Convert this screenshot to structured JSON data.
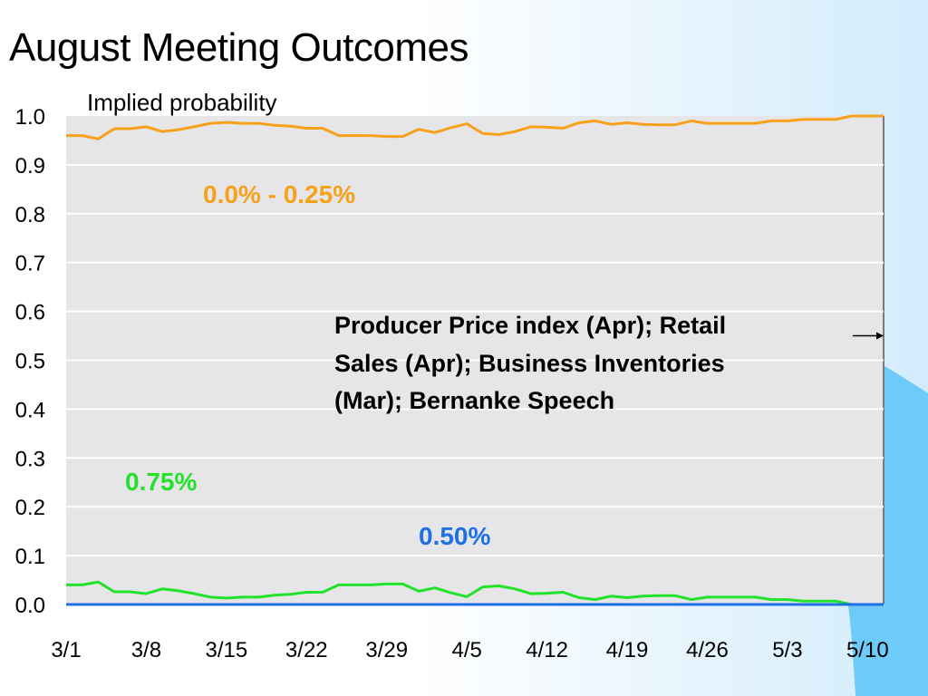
{
  "title": "August Meeting Outcomes",
  "chart_data": {
    "type": "line",
    "title": "August Meeting Outcomes",
    "subtitle": "Implied probability",
    "xlabel": "",
    "ylabel": "",
    "ylim": [
      0,
      1
    ],
    "grid": true,
    "yticks": [
      "0.0",
      "0.1",
      "0.2",
      "0.3",
      "0.4",
      "0.5",
      "0.6",
      "0.7",
      "0.8",
      "0.9",
      "1.0"
    ],
    "xticks": [
      "3/1",
      "3/8",
      "3/15",
      "3/22",
      "3/29",
      "4/5",
      "4/12",
      "4/19",
      "4/26",
      "5/3",
      "5/10"
    ],
    "x": [
      "3/1",
      "3/2",
      "3/3",
      "3/4",
      "3/7",
      "3/8",
      "3/9",
      "3/10",
      "3/11",
      "3/14",
      "3/15",
      "3/16",
      "3/17",
      "3/18",
      "3/21",
      "3/22",
      "3/23",
      "3/24",
      "3/25",
      "3/28",
      "3/29",
      "3/30",
      "3/31",
      "4/1",
      "4/4",
      "4/5",
      "4/6",
      "4/7",
      "4/8",
      "4/11",
      "4/12",
      "4/13",
      "4/14",
      "4/15",
      "4/18",
      "4/19",
      "4/20",
      "4/21",
      "4/22",
      "4/25",
      "4/26",
      "4/27",
      "4/28",
      "4/29",
      "5/2",
      "5/3",
      "5/4",
      "5/5",
      "5/6",
      "5/9",
      "5/10",
      "5/11"
    ],
    "series": [
      {
        "name": "0.0% - 0.25%",
        "color": "#f7a11a",
        "values": [
          0.96,
          0.96,
          0.953,
          0.974,
          0.974,
          0.978,
          0.968,
          0.972,
          0.978,
          0.985,
          0.987,
          0.985,
          0.985,
          0.981,
          0.979,
          0.975,
          0.975,
          0.96,
          0.96,
          0.96,
          0.958,
          0.958,
          0.973,
          0.966,
          0.976,
          0.984,
          0.964,
          0.962,
          0.968,
          0.978,
          0.977,
          0.975,
          0.986,
          0.99,
          0.983,
          0.986,
          0.983,
          0.982,
          0.982,
          0.99,
          0.985,
          0.985,
          0.985,
          0.985,
          0.99,
          0.99,
          0.993,
          0.993,
          0.993,
          1.0,
          1.0,
          1.0
        ]
      },
      {
        "name": "0.75%",
        "color": "#22e22a",
        "values": [
          0.04,
          0.04,
          0.046,
          0.026,
          0.026,
          0.022,
          0.032,
          0.028,
          0.022,
          0.015,
          0.013,
          0.015,
          0.015,
          0.019,
          0.021,
          0.025,
          0.025,
          0.04,
          0.04,
          0.04,
          0.042,
          0.042,
          0.027,
          0.034,
          0.024,
          0.016,
          0.036,
          0.038,
          0.032,
          0.022,
          0.023,
          0.025,
          0.014,
          0.01,
          0.017,
          0.014,
          0.017,
          0.018,
          0.018,
          0.01,
          0.015,
          0.015,
          0.015,
          0.015,
          0.01,
          0.01,
          0.007,
          0.007,
          0.007,
          0.0,
          0.0,
          0.0
        ]
      },
      {
        "name": "0.50%",
        "color": "#1f6fe5",
        "values": [
          0,
          0,
          0,
          0,
          0,
          0,
          0,
          0,
          0,
          0,
          0,
          0,
          0,
          0,
          0,
          0,
          0,
          0,
          0,
          0,
          0,
          0,
          0,
          0,
          0,
          0,
          0,
          0,
          0,
          0,
          0,
          0,
          0,
          0,
          0,
          0,
          0,
          0,
          0,
          0,
          0,
          0,
          0,
          0,
          0,
          0,
          0,
          0,
          0,
          0,
          0,
          0
        ]
      }
    ],
    "annotation": {
      "lines": [
        "Producer Price index (Apr); Retail",
        "Sales (Apr); Business Inventories",
        "(Mar); Bernanke Speech"
      ],
      "x": "5/11",
      "y": 0.55
    }
  },
  "colors": {
    "plot_background": "#e6e6e8",
    "gridline": "#ffffff",
    "decor_blue": "#6ecaf9"
  }
}
